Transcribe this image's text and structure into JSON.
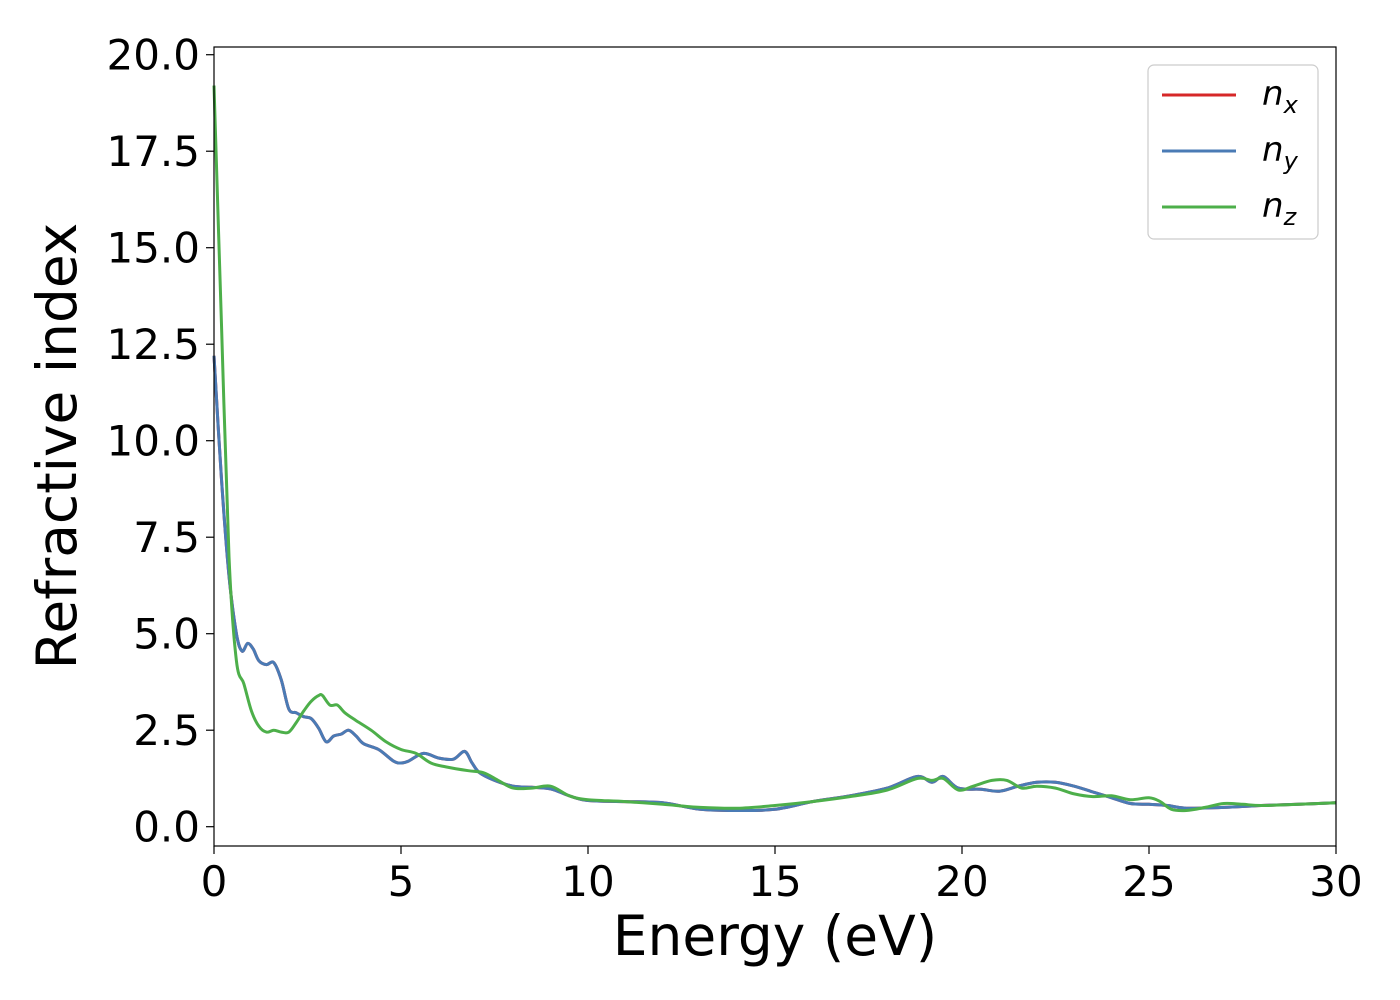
{
  "chart_data": {
    "type": "line",
    "title": "",
    "xlabel": "Energy (eV)",
    "ylabel": "Refractive index",
    "xlim": [
      0,
      30
    ],
    "ylim": [
      -0.5,
      20.2
    ],
    "xticks": [
      0,
      5,
      10,
      15,
      20,
      25,
      30
    ],
    "xtick_labels": [
      "0",
      "5",
      "10",
      "15",
      "20",
      "25",
      "30"
    ],
    "yticks": [
      0,
      2.5,
      5,
      7.5,
      10,
      12.5,
      15,
      17.5,
      20
    ],
    "ytick_labels": [
      "0.0",
      "2.5",
      "5.0",
      "7.5",
      "10.0",
      "12.5",
      "15.0",
      "17.5",
      "20.0"
    ],
    "grid": false,
    "legend_position": "top-right",
    "series": [
      {
        "name": "n",
        "subscript": "x",
        "color": "#d62728",
        "x": [
          0,
          0.2,
          0.4,
          0.6,
          0.75,
          0.9,
          1.05,
          1.2,
          1.4,
          1.6,
          1.8,
          2.0,
          2.2,
          2.4,
          2.6,
          2.8,
          3.0,
          3.2,
          3.4,
          3.6,
          3.8,
          4.0,
          4.4,
          4.8,
          5.0,
          5.2,
          5.6,
          6.0,
          6.4,
          6.7,
          6.9,
          7.1,
          7.5,
          8.0,
          8.5,
          9.0,
          9.5,
          10.0,
          11.0,
          12.0,
          13.0,
          14.0,
          15.0,
          16.0,
          17.0,
          18.0,
          18.8,
          19.2,
          19.5,
          19.9,
          20.5,
          21.0,
          21.5,
          22.0,
          22.5,
          23.0,
          23.5,
          24.0,
          24.5,
          25.0,
          25.5,
          26.0,
          27.0,
          28.0,
          29.0,
          30.0
        ],
        "y": [
          12.2,
          9.0,
          6.5,
          5.0,
          4.55,
          4.75,
          4.6,
          4.3,
          4.2,
          4.25,
          3.8,
          3.05,
          2.95,
          2.85,
          2.8,
          2.55,
          2.2,
          2.35,
          2.4,
          2.5,
          2.35,
          2.15,
          2.0,
          1.7,
          1.65,
          1.7,
          1.9,
          1.78,
          1.75,
          1.95,
          1.65,
          1.4,
          1.2,
          1.05,
          1.02,
          0.98,
          0.8,
          0.68,
          0.65,
          0.62,
          0.45,
          0.42,
          0.45,
          0.65,
          0.8,
          1.0,
          1.3,
          1.15,
          1.3,
          1.0,
          0.97,
          0.92,
          1.05,
          1.15,
          1.15,
          1.05,
          0.9,
          0.75,
          0.6,
          0.58,
          0.55,
          0.48,
          0.5,
          0.55,
          0.58,
          0.62
        ]
      },
      {
        "name": "n",
        "subscript": "y",
        "color": "#4a7bb5",
        "x": [
          0,
          0.2,
          0.4,
          0.6,
          0.75,
          0.9,
          1.05,
          1.2,
          1.4,
          1.6,
          1.8,
          2.0,
          2.2,
          2.4,
          2.6,
          2.8,
          3.0,
          3.2,
          3.4,
          3.6,
          3.8,
          4.0,
          4.4,
          4.8,
          5.0,
          5.2,
          5.6,
          6.0,
          6.4,
          6.7,
          6.9,
          7.1,
          7.5,
          8.0,
          8.5,
          9.0,
          9.5,
          10.0,
          11.0,
          12.0,
          13.0,
          14.0,
          15.0,
          16.0,
          17.0,
          18.0,
          18.8,
          19.2,
          19.5,
          19.9,
          20.5,
          21.0,
          21.5,
          22.0,
          22.5,
          23.0,
          23.5,
          24.0,
          24.5,
          25.0,
          25.5,
          26.0,
          27.0,
          28.0,
          29.0,
          30.0
        ],
        "y": [
          12.2,
          9.0,
          6.5,
          5.0,
          4.55,
          4.75,
          4.6,
          4.3,
          4.2,
          4.25,
          3.8,
          3.05,
          2.95,
          2.85,
          2.8,
          2.55,
          2.2,
          2.35,
          2.4,
          2.5,
          2.35,
          2.15,
          2.0,
          1.7,
          1.65,
          1.7,
          1.9,
          1.78,
          1.75,
          1.95,
          1.65,
          1.4,
          1.2,
          1.05,
          1.02,
          0.98,
          0.8,
          0.68,
          0.65,
          0.62,
          0.45,
          0.42,
          0.45,
          0.65,
          0.8,
          1.0,
          1.3,
          1.15,
          1.3,
          1.0,
          0.97,
          0.92,
          1.05,
          1.15,
          1.15,
          1.05,
          0.9,
          0.75,
          0.6,
          0.58,
          0.55,
          0.48,
          0.5,
          0.55,
          0.58,
          0.62
        ]
      },
      {
        "name": "n",
        "subscript": "z",
        "color": "#4daf4a",
        "x": [
          0,
          0.2,
          0.4,
          0.6,
          0.8,
          1.0,
          1.2,
          1.4,
          1.6,
          1.8,
          2.0,
          2.2,
          2.4,
          2.6,
          2.8,
          2.9,
          3.1,
          3.3,
          3.5,
          3.8,
          4.2,
          4.6,
          5.0,
          5.4,
          5.8,
          6.2,
          6.8,
          7.2,
          7.6,
          8.0,
          8.5,
          9.0,
          9.5,
          10.0,
          11.0,
          12.0,
          13.0,
          14.0,
          15.0,
          16.0,
          17.0,
          18.0,
          18.8,
          19.2,
          19.5,
          19.9,
          20.3,
          20.8,
          21.2,
          21.6,
          22.0,
          22.5,
          23.0,
          23.5,
          24.0,
          24.5,
          25.0,
          25.3,
          25.6,
          26.0,
          26.5,
          27.0,
          27.5,
          28.0,
          29.0,
          30.0
        ],
        "y": [
          19.2,
          13.0,
          7.0,
          4.3,
          3.7,
          3.0,
          2.6,
          2.45,
          2.5,
          2.45,
          2.45,
          2.7,
          3.0,
          3.25,
          3.4,
          3.4,
          3.15,
          3.15,
          2.95,
          2.75,
          2.5,
          2.2,
          2.0,
          1.9,
          1.65,
          1.55,
          1.45,
          1.4,
          1.2,
          1.0,
          1.0,
          1.05,
          0.8,
          0.7,
          0.65,
          0.58,
          0.5,
          0.48,
          0.55,
          0.65,
          0.78,
          0.95,
          1.25,
          1.2,
          1.25,
          0.95,
          1.05,
          1.2,
          1.2,
          1.0,
          1.05,
          1.0,
          0.85,
          0.78,
          0.8,
          0.7,
          0.75,
          0.65,
          0.45,
          0.42,
          0.5,
          0.6,
          0.58,
          0.55,
          0.58,
          0.62
        ]
      }
    ]
  }
}
